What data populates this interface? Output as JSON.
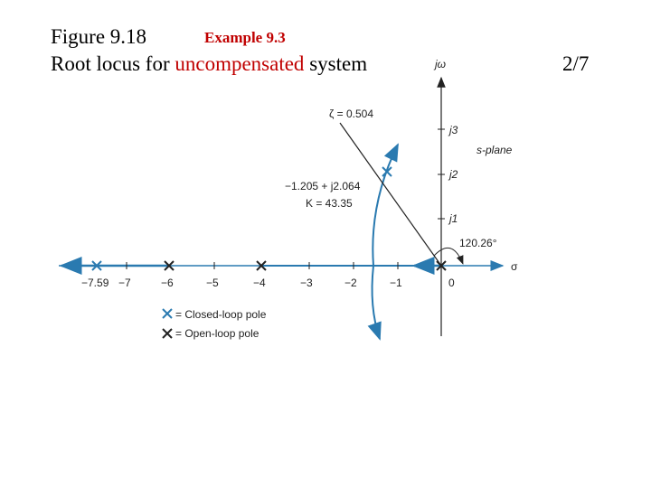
{
  "header": {
    "figure": "Figure 9.18",
    "example": "Example 9.3",
    "title_start": "Root locus for ",
    "title_highlight": "uncompensated",
    "title_end": " system",
    "page": "2/7"
  },
  "diagram": {
    "imag_axis": "jω",
    "real_axis": "σ",
    "plane": "s-plane",
    "imag_ticks": [
      "j3",
      "j2",
      "j1"
    ],
    "real_ticks": [
      "0",
      "−1",
      "−2",
      "−3",
      "−4",
      "−5",
      "−6",
      "−7",
      "−7.59"
    ],
    "zeta": "ζ = 0.504",
    "point": "−1.205 + j2.064",
    "gain": "K = 43.35",
    "angle": "120.26°"
  },
  "legend": {
    "closed": "= Closed-loop pole",
    "open": "= Open-loop pole"
  }
}
